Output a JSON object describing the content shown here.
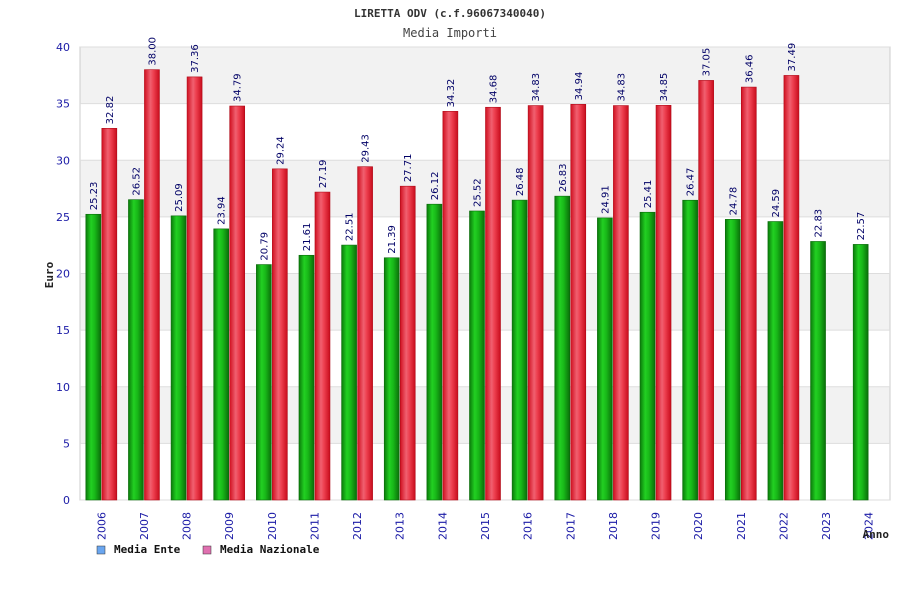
{
  "chart_data": {
    "type": "bar",
    "title": "LIRETTA ODV (c.f.96067340040)",
    "subtitle": "Media Importi",
    "xlabel": "Anno",
    "ylabel": "Euro",
    "ylim": [
      0,
      40
    ],
    "yticks": [
      0,
      5,
      10,
      15,
      20,
      25,
      30,
      35,
      40
    ],
    "categories": [
      "2006",
      "2007",
      "2008",
      "2009",
      "2010",
      "2011",
      "2012",
      "2013",
      "2014",
      "2015",
      "2016",
      "2017",
      "2018",
      "2019",
      "2020",
      "2021",
      "2022",
      "2023",
      "2024"
    ],
    "series": [
      {
        "name": "Media Ente",
        "color": "#14b814",
        "legend_color": "#6aa6f0",
        "values": [
          25.23,
          26.52,
          25.09,
          23.94,
          20.79,
          21.61,
          22.51,
          21.39,
          26.12,
          25.52,
          26.48,
          26.83,
          24.91,
          25.41,
          26.47,
          24.78,
          24.59,
          22.83,
          22.57
        ],
        "labels": [
          "25.23",
          "26.52",
          "25.09",
          "23.94",
          "20.79",
          "21.61",
          "22.51",
          "21.39",
          "26.12",
          "25.52",
          "26.48",
          "26.83",
          "24.91",
          "25.41",
          "26.47",
          "24.78",
          "24.59",
          "22.83",
          "22.57"
        ]
      },
      {
        "name": "Media Nazionale",
        "color": "#e82030",
        "legend_color": "#e070b0",
        "values": [
          32.82,
          38.0,
          37.36,
          34.79,
          29.24,
          27.19,
          29.43,
          27.71,
          34.32,
          34.68,
          34.83,
          34.94,
          34.83,
          34.85,
          37.05,
          36.46,
          37.49,
          null,
          null
        ],
        "labels": [
          "32.82",
          "38.00",
          "37.36",
          "34.79",
          "29.24",
          "27.19",
          "29.43",
          "27.71",
          "34.32",
          "34.68",
          "34.83",
          "34.94",
          "34.83",
          "34.85",
          "37.05",
          "36.46",
          "37.49",
          "",
          ""
        ]
      }
    ],
    "grid": true,
    "legend": "bottom-left"
  }
}
